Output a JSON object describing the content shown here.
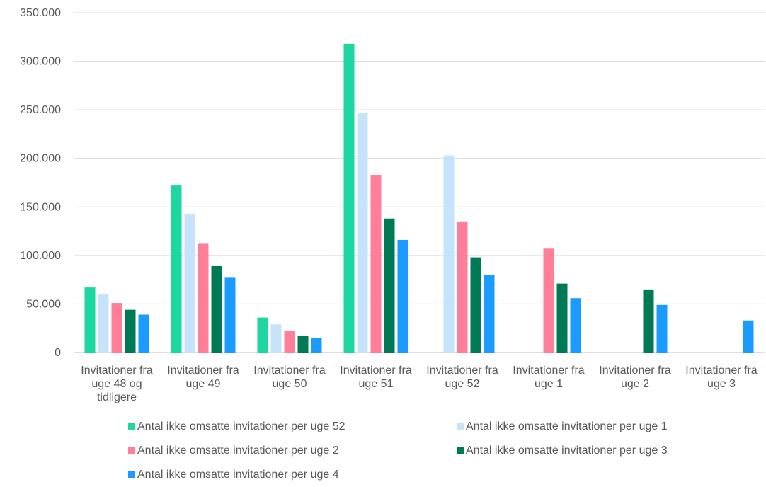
{
  "chart_data": {
    "type": "bar",
    "categories": [
      [
        "Invitationer fra",
        "uge 48 og",
        "tidligere"
      ],
      [
        "Invitationer fra",
        "uge 49"
      ],
      [
        "Invitationer fra",
        "uge 50"
      ],
      [
        "Invitationer fra",
        "uge 51"
      ],
      [
        "Invitationer fra",
        "uge 52"
      ],
      [
        "Invitationer fra",
        "uge 1"
      ],
      [
        "Invitationer fra",
        "uge 2"
      ],
      [
        "Invitationer fra",
        "uge 3"
      ]
    ],
    "series": [
      {
        "name": "Antal ikke omsatte invitationer per uge 52",
        "color": "#1ED69F",
        "values": [
          67000,
          172000,
          36000,
          318000,
          null,
          null,
          null,
          null
        ]
      },
      {
        "name": "Antal ikke omsatte invitationer per uge 1",
        "color": "#C6E3FA",
        "values": [
          60000,
          143000,
          29000,
          247000,
          203000,
          null,
          null,
          null
        ]
      },
      {
        "name": "Antal ikke omsatte invitationer per uge 2",
        "color": "#FF7F98",
        "values": [
          51000,
          112000,
          22000,
          183000,
          135000,
          107000,
          null,
          null
        ]
      },
      {
        "name": "Antal ikke omsatte invitationer per uge 3",
        "color": "#007A54",
        "values": [
          44000,
          89000,
          17000,
          138000,
          98000,
          71000,
          65000,
          null
        ]
      },
      {
        "name": "Antal ikke omsatte invitationer per uge 4",
        "color": "#1C9BFF",
        "values": [
          39000,
          77000,
          15000,
          116000,
          80000,
          56000,
          49000,
          33000
        ]
      }
    ],
    "y_ticks": [
      "0",
      "50.000",
      "100.000",
      "150.000",
      "200.000",
      "250.000",
      "300.000",
      "350.000"
    ],
    "ylim": [
      0,
      350000
    ],
    "grid": true,
    "legend_position": "bottom"
  }
}
